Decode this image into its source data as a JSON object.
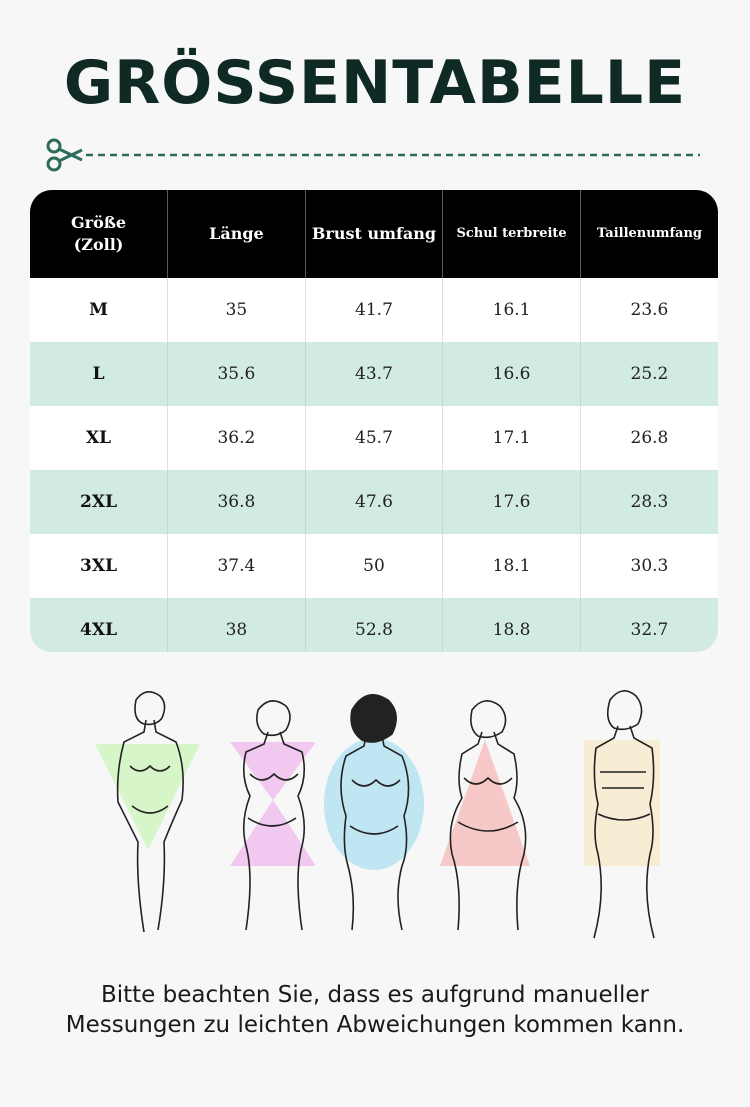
{
  "title": "GRÖSSENTABELLE",
  "table": {
    "headers": [
      "Größe\n(Zoll)",
      "Länge",
      "Brust umfang",
      "Schul terbreite",
      "Taillenumfang"
    ],
    "rows": [
      [
        "M",
        "35",
        "41.7",
        "16.1",
        "23.6"
      ],
      [
        "L",
        "35.6",
        "43.7",
        "16.6",
        "25.2"
      ],
      [
        "XL",
        "36.2",
        "45.7",
        "17.1",
        "26.8"
      ],
      [
        "2XL",
        "36.8",
        "47.6",
        "17.6",
        "28.3"
      ],
      [
        "3XL",
        "37.4",
        "50",
        "18.1",
        "30.3"
      ],
      [
        "4XL",
        "38",
        "52.8",
        "18.8",
        "32.7"
      ]
    ]
  },
  "body_shapes": [
    {
      "shape": "inverted-triangle",
      "color": "#d6f5c8"
    },
    {
      "shape": "hourglass",
      "color": "#f0c8f0"
    },
    {
      "shape": "apple",
      "color": "#bfe6f2"
    },
    {
      "shape": "pear",
      "color": "#f7c8c8"
    },
    {
      "shape": "rectangle",
      "color": "#f7ecd4"
    }
  ],
  "note": "Bitte beachten Sie, dass es aufgrund manueller Messungen zu leichten Abweichungen kommen kann.",
  "colors": {
    "accent": "#2d6b5a",
    "row_alt": "#d2ebe1",
    "header_bg": "#000000",
    "title": "#0f2a24"
  }
}
